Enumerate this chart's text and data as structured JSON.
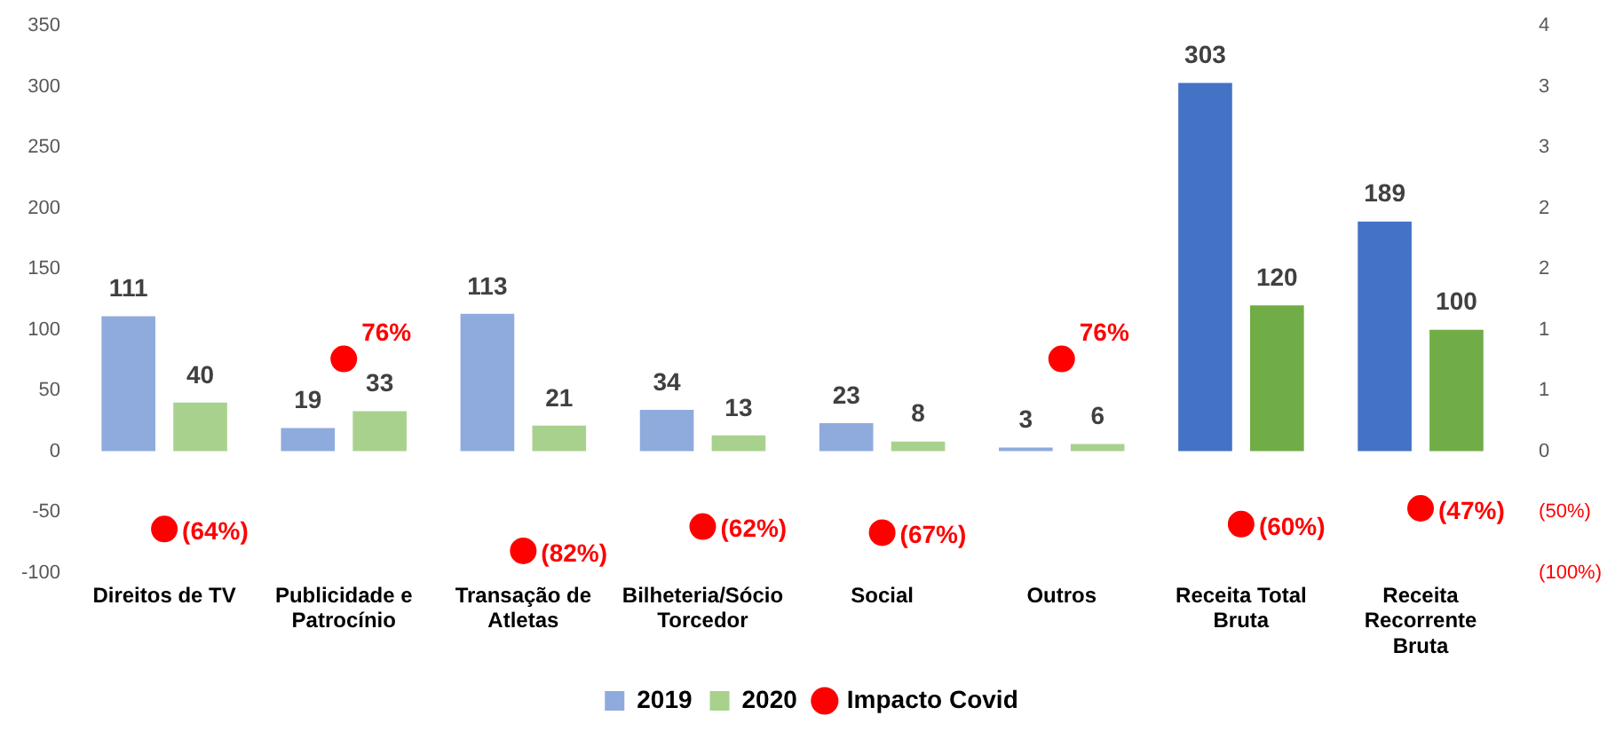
{
  "chart_data": {
    "type": "bar",
    "categories": [
      "Direitos de TV",
      "Publicidade e Patrocínio",
      "Transação de Atletas",
      "Bilheteria/Sócio Torcedor",
      "Social",
      "Outros",
      "Receita Total Bruta",
      "Receita Recorrente Bruta"
    ],
    "series": [
      {
        "name": "2019",
        "color": "#8faadc",
        "colors": [
          "#8faadc",
          "#8faadc",
          "#8faadc",
          "#8faadc",
          "#8faadc",
          "#8faadc",
          "#4472c4",
          "#4472c4"
        ],
        "values": [
          111,
          19,
          113,
          34,
          23,
          3,
          303,
          189
        ]
      },
      {
        "name": "2020",
        "color": "#a9d18e",
        "colors": [
          "#a9d18e",
          "#a9d18e",
          "#a9d18e",
          "#a9d18e",
          "#a9d18e",
          "#a9d18e",
          "#70ad47",
          "#70ad47"
        ],
        "values": [
          40,
          33,
          21,
          13,
          8,
          6,
          120,
          100
        ]
      },
      {
        "name": "Impacto Covid",
        "type": "scatter",
        "axis": "y2",
        "color": "#ff0000",
        "marker": "circle",
        "values": [
          -0.64,
          0.76,
          -0.82,
          -0.62,
          -0.67,
          0.76,
          -0.6,
          -0.47
        ],
        "value_labels": [
          "(64%)",
          "76%",
          "(82%)",
          "(62%)",
          "(67%)",
          "76%",
          "(60%)",
          "(47%)"
        ]
      }
    ],
    "ylim": [
      -100,
      350
    ],
    "yticks": [
      -100,
      -50,
      0,
      50,
      100,
      150,
      200,
      250,
      300,
      350
    ],
    "y2lim": [
      -1,
      3.5
    ],
    "y2ticks": [
      {
        "value": -1,
        "label": "(100%)"
      },
      {
        "value": -0.5,
        "label": "(50%)"
      },
      0,
      {
        "value": 0.5,
        "label": "1"
      },
      1,
      {
        "value": 1.5,
        "label": "2"
      },
      2,
      {
        "value": 2.5,
        "label": "3"
      },
      3,
      {
        "value": 3.5,
        "label": "4"
      }
    ],
    "data_labels": true,
    "legend": "bottom",
    "grid": false
  }
}
